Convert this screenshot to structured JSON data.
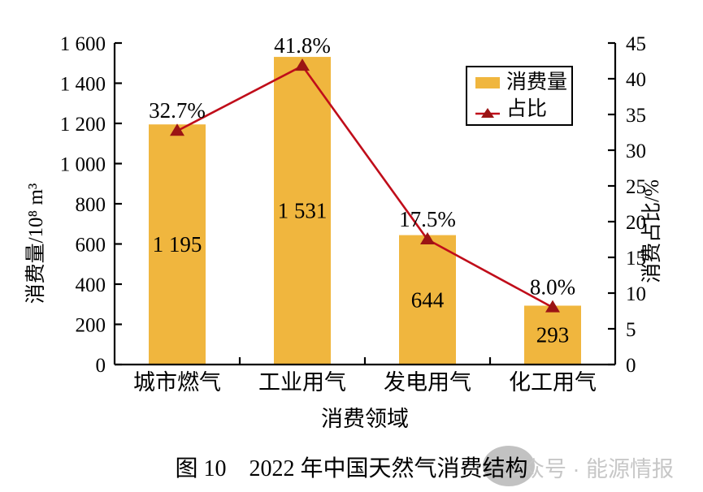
{
  "figure": {
    "caption": {
      "label": "图 10",
      "title": "2022 年中国天然气消费结构"
    },
    "watermark": "公众号 · 能源情报"
  },
  "chart_data": {
    "type": "bar+line",
    "title": "2022 年中国天然气消费结构",
    "categories": [
      "城市燃气",
      "工业用气",
      "发电用气",
      "化工用气"
    ],
    "series": [
      {
        "name": "消费量",
        "type": "bar",
        "axis": "left",
        "color": "#F0B63E",
        "values": [
          1195,
          1531,
          644,
          293
        ],
        "value_labels": [
          "1 195",
          "1 531",
          "644",
          "293"
        ],
        "label_color": "#1F4E79"
      },
      {
        "name": "占比",
        "type": "line",
        "axis": "right",
        "color": "#C00D1A",
        "marker": "triangle-up",
        "marker_color": "#9B1414",
        "values": [
          32.7,
          41.8,
          17.5,
          8.0
        ],
        "value_labels": [
          "32.7%",
          "41.8%",
          "17.5%",
          "8.0%"
        ],
        "label_color": "#CE2020"
      }
    ],
    "x_axis": {
      "title": "消费领域"
    },
    "left_axis": {
      "title": "消费量/10⁸ m³",
      "min": 0,
      "max": 1600,
      "step": 200,
      "tick_labels": [
        "0",
        "200",
        "400",
        "600",
        "800",
        "1 000",
        "1 200",
        "1 400",
        "1 600"
      ]
    },
    "right_axis": {
      "title": "消费占比/%",
      "min": 0,
      "max": 45,
      "step": 5,
      "tick_labels": [
        "0",
        "5",
        "10",
        "15",
        "20",
        "25",
        "30",
        "35",
        "40",
        "45"
      ]
    },
    "legend": {
      "position": "top-right",
      "items": [
        "消费量",
        "占比"
      ]
    },
    "grid": false
  }
}
